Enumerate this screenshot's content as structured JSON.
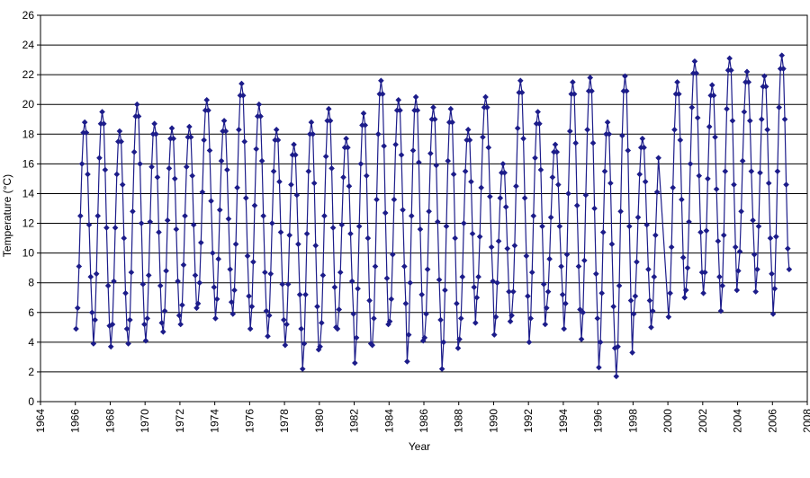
{
  "chart_data": {
    "type": "line",
    "x_label": "Year",
    "y_label": "Temperature (°C)",
    "xlim": [
      1964,
      2008
    ],
    "xticks": [
      1964,
      1966,
      1968,
      1970,
      1972,
      1974,
      1976,
      1978,
      1980,
      1982,
      1984,
      1986,
      1988,
      1990,
      1992,
      1994,
      1996,
      1998,
      2000,
      2002,
      2004,
      2006,
      2008
    ],
    "ylim": [
      0,
      26
    ],
    "yticks": [
      0,
      2,
      4,
      6,
      8,
      10,
      12,
      14,
      16,
      18,
      20,
      22,
      24,
      26
    ],
    "grid": true,
    "color": "#1c1c8a",
    "x": [
      1966.04,
      1966.13,
      1966.21,
      1966.29,
      1966.38,
      1966.46,
      1966.54,
      1966.63,
      1966.71,
      1966.79,
      1966.88,
      1966.96,
      1967.04,
      1967.13,
      1967.21,
      1967.29,
      1967.38,
      1967.46,
      1967.54,
      1967.63,
      1967.71,
      1967.79,
      1967.88,
      1967.96,
      1968.04,
      1968.13,
      1968.21,
      1968.29,
      1968.38,
      1968.46,
      1968.54,
      1968.63,
      1968.71,
      1968.79,
      1968.88,
      1968.96,
      1969.04,
      1969.13,
      1969.21,
      1969.29,
      1969.38,
      1969.46,
      1969.54,
      1969.63,
      1969.71,
      1969.79,
      1969.88,
      1969.96,
      1970.04,
      1970.13,
      1970.21,
      1970.29,
      1970.38,
      1970.46,
      1970.54,
      1970.63,
      1970.71,
      1970.79,
      1970.88,
      1970.96,
      1971.04,
      1971.13,
      1971.21,
      1971.29,
      1971.38,
      1971.46,
      1971.54,
      1971.63,
      1971.71,
      1971.79,
      1971.88,
      1971.96,
      1972.04,
      1972.13,
      1972.21,
      1972.29,
      1972.38,
      1972.46,
      1972.54,
      1972.63,
      1972.71,
      1972.79,
      1972.88,
      1972.96,
      1973.04,
      1973.13,
      1973.21,
      1973.29,
      1973.38,
      1973.46,
      1973.54,
      1973.63,
      1973.71,
      1973.79,
      1973.88,
      1973.96,
      1974.04,
      1974.13,
      1974.21,
      1974.29,
      1974.38,
      1974.46,
      1974.54,
      1974.63,
      1974.71,
      1974.79,
      1974.88,
      1974.96,
      1975.04,
      1975.13,
      1975.21,
      1975.29,
      1975.38,
      1975.46,
      1975.54,
      1975.63,
      1975.71,
      1975.79,
      1975.88,
      1975.96,
      1976.04,
      1976.13,
      1976.21,
      1976.29,
      1976.38,
      1976.46,
      1976.54,
      1976.63,
      1976.71,
      1976.79,
      1976.88,
      1976.96,
      1977.04,
      1977.13,
      1977.21,
      1977.29,
      1977.38,
      1977.46,
      1977.54,
      1977.63,
      1977.71,
      1977.79,
      1977.88,
      1977.96,
      1978.04,
      1978.13,
      1978.21,
      1978.29,
      1978.38,
      1978.46,
      1978.54,
      1978.63,
      1978.71,
      1978.79,
      1978.88,
      1978.96,
      1979.04,
      1979.13,
      1979.21,
      1979.29,
      1979.38,
      1979.46,
      1979.54,
      1979.63,
      1979.71,
      1979.79,
      1979.88,
      1979.96,
      1980.04,
      1980.13,
      1980.21,
      1980.29,
      1980.38,
      1980.46,
      1980.54,
      1980.63,
      1980.71,
      1980.79,
      1980.88,
      1980.96,
      1981.04,
      1981.13,
      1981.21,
      1981.29,
      1981.38,
      1981.46,
      1981.54,
      1981.63,
      1981.71,
      1981.79,
      1981.88,
      1981.96,
      1982.04,
      1982.13,
      1982.21,
      1982.29,
      1982.38,
      1982.46,
      1982.54,
      1982.63,
      1982.71,
      1982.79,
      1982.88,
      1982.96,
      1983.04,
      1983.13,
      1983.21,
      1983.29,
      1983.38,
      1983.46,
      1983.54,
      1983.63,
      1983.71,
      1983.79,
      1983.88,
      1983.96,
      1984.04,
      1984.13,
      1984.21,
      1984.29,
      1984.38,
      1984.46,
      1984.54,
      1984.63,
      1984.71,
      1984.79,
      1984.88,
      1984.96,
      1985.04,
      1985.13,
      1985.21,
      1985.29,
      1985.38,
      1985.46,
      1985.54,
      1985.63,
      1985.71,
      1985.79,
      1985.88,
      1985.96,
      1986.04,
      1986.13,
      1986.21,
      1986.29,
      1986.38,
      1986.46,
      1986.54,
      1986.63,
      1986.71,
      1986.79,
      1986.88,
      1986.96,
      1987.04,
      1987.13,
      1987.21,
      1987.29,
      1987.38,
      1987.46,
      1987.54,
      1987.63,
      1987.71,
      1987.79,
      1987.88,
      1987.96,
      1988.04,
      1988.13,
      1988.21,
      1988.29,
      1988.38,
      1988.46,
      1988.54,
      1988.63,
      1988.71,
      1988.79,
      1988.88,
      1988.96,
      1989.04,
      1989.13,
      1989.21,
      1989.29,
      1989.38,
      1989.46,
      1989.54,
      1989.63,
      1989.71,
      1989.79,
      1989.88,
      1989.96,
      1990.04,
      1990.13,
      1990.21,
      1990.29,
      1990.38,
      1990.46,
      1990.54,
      1990.63,
      1990.71,
      1990.79,
      1990.88,
      1990.96,
      1991.04,
      1991.13,
      1991.21,
      1991.29,
      1991.38,
      1991.46,
      1991.54,
      1991.63,
      1991.71,
      1991.79,
      1991.88,
      1991.96,
      1992.04,
      1992.13,
      1992.21,
      1992.29,
      1992.38,
      1992.46,
      1992.54,
      1992.63,
      1992.71,
      1992.79,
      1992.88,
      1992.96,
      1993.04,
      1993.13,
      1993.21,
      1993.29,
      1993.38,
      1993.46,
      1993.54,
      1993.63,
      1993.71,
      1993.79,
      1993.88,
      1993.96,
      1994.04,
      1994.13,
      1994.21,
      1994.29,
      1994.38,
      1994.46,
      1994.54,
      1994.63,
      1994.71,
      1994.79,
      1994.88,
      1994.96,
      1995.04,
      1995.13,
      1995.21,
      1995.29,
      1995.38,
      1995.46,
      1995.54,
      1995.63,
      1995.71,
      1995.79,
      1995.88,
      1995.96,
      1996.04,
      1996.13,
      1996.21,
      1996.29,
      1996.38,
      1996.46,
      1996.54,
      1996.63,
      1996.71,
      1996.79,
      1996.88,
      1996.96,
      1997.04,
      1997.13,
      1997.21,
      1997.29,
      1997.38,
      1997.46,
      1997.54,
      1997.63,
      1997.71,
      1997.79,
      1997.88,
      1997.96,
      1998.04,
      1998.13,
      1998.21,
      1998.29,
      1998.38,
      1998.46,
      1998.54,
      1998.63,
      1998.71,
      1998.79,
      1998.88,
      1998.96,
      1999.04,
      1999.13,
      1999.21,
      1999.29,
      1999.38,
      1999.46,
      2000.04,
      2000.13,
      2000.21,
      2000.29,
      2000.38,
      2000.46,
      2000.54,
      2000.63,
      2000.71,
      2000.79,
      2000.88,
      2000.96,
      2001.04,
      2001.13,
      2001.21,
      2001.29,
      2001.38,
      2001.46,
      2001.54,
      2001.63,
      2001.71,
      2001.79,
      2001.88,
      2001.96,
      2002.04,
      2002.13,
      2002.21,
      2002.29,
      2002.38,
      2002.46,
      2002.54,
      2002.63,
      2002.71,
      2002.79,
      2002.88,
      2002.96,
      2003.04,
      2003.13,
      2003.21,
      2003.29,
      2003.38,
      2003.46,
      2003.54,
      2003.63,
      2003.71,
      2003.79,
      2003.88,
      2003.96,
      2004.04,
      2004.13,
      2004.21,
      2004.29,
      2004.38,
      2004.46,
      2004.54,
      2004.63,
      2004.71,
      2004.79,
      2004.88,
      2004.96,
      2005.04,
      2005.13,
      2005.21,
      2005.29,
      2005.38,
      2005.46,
      2005.54,
      2005.63,
      2005.71,
      2005.79,
      2005.88,
      2005.96,
      2006.04,
      2006.13,
      2006.21,
      2006.29,
      2006.38,
      2006.46,
      2006.54,
      2006.63,
      2006.71,
      2006.79,
      2006.88,
      2006.96
    ],
    "values": [
      4.9,
      6.3,
      9.1,
      12.5,
      16.0,
      18.1,
      18.8,
      18.1,
      15.3,
      11.9,
      8.4,
      6.0,
      3.9,
      5.5,
      8.6,
      12.5,
      16.4,
      18.7,
      19.5,
      18.7,
      15.6,
      11.7,
      7.8,
      5.1,
      3.7,
      5.2,
      8.1,
      11.7,
      15.3,
      17.5,
      18.2,
      17.5,
      14.6,
      11.0,
      7.3,
      4.9,
      3.9,
      5.5,
      8.7,
      12.8,
      16.8,
      19.2,
      20.0,
      19.2,
      16.0,
      12.0,
      7.9,
      5.2,
      4.1,
      5.6,
      8.5,
      12.1,
      15.8,
      18.0,
      18.7,
      18.0,
      15.1,
      11.4,
      7.8,
      5.3,
      4.7,
      6.1,
      8.8,
      12.2,
      15.7,
      17.7,
      18.4,
      17.7,
      15.0,
      11.6,
      8.1,
      5.8,
      5.2,
      6.5,
      9.2,
      12.5,
      15.8,
      17.8,
      18.5,
      17.8,
      15.2,
      11.9,
      8.5,
      6.3,
      6.6,
      8.0,
      10.7,
      14.1,
      17.6,
      19.6,
      20.3,
      19.6,
      16.9,
      13.5,
      10.0,
      7.7,
      5.6,
      6.9,
      9.6,
      12.9,
      16.2,
      18.2,
      18.9,
      18.2,
      15.6,
      12.3,
      8.9,
      6.7,
      5.9,
      7.5,
      10.6,
      14.4,
      18.3,
      20.6,
      21.4,
      20.6,
      17.5,
      13.7,
      9.8,
      7.1,
      4.9,
      6.4,
      9.4,
      13.2,
      17.0,
      19.2,
      20.0,
      19.2,
      16.2,
      12.5,
      8.7,
      6.1,
      4.4,
      5.8,
      8.6,
      12.0,
      15.5,
      17.6,
      18.3,
      17.6,
      14.8,
      11.4,
      7.9,
      5.5,
      3.8,
      5.2,
      7.9,
      11.2,
      14.6,
      16.6,
      17.3,
      16.6,
      13.9,
      10.6,
      7.2,
      4.9,
      2.2,
      3.9,
      7.2,
      11.3,
      15.5,
      18.0,
      18.8,
      18.0,
      14.7,
      10.5,
      6.4,
      3.5,
      3.7,
      5.3,
      8.5,
      12.5,
      16.5,
      18.9,
      19.7,
      18.9,
      15.7,
      11.7,
      7.7,
      5.0,
      4.9,
      6.2,
      8.7,
      11.9,
      15.1,
      17.1,
      17.7,
      17.1,
      14.5,
      11.3,
      8.1,
      5.9,
      2.6,
      4.3,
      7.6,
      11.8,
      16.0,
      18.6,
      19.4,
      18.6,
      15.2,
      11.0,
      6.8,
      3.9,
      3.8,
      5.6,
      9.1,
      13.6,
      18.0,
      20.7,
      21.6,
      20.7,
      17.2,
      12.7,
      8.3,
      5.2,
      5.4,
      6.9,
      9.9,
      13.6,
      17.3,
      19.6,
      20.3,
      19.6,
      16.6,
      12.9,
      9.1,
      6.6,
      2.7,
      4.5,
      8.0,
      12.5,
      16.9,
      19.6,
      20.5,
      19.6,
      16.1,
      11.6,
      7.2,
      4.1,
      4.3,
      5.9,
      8.9,
      12.8,
      16.7,
      19.0,
      19.8,
      19.0,
      15.9,
      12.1,
      8.2,
      5.5,
      2.2,
      4.0,
      7.5,
      11.8,
      16.2,
      18.8,
      19.7,
      18.8,
      15.3,
      11.0,
      6.6,
      3.6,
      4.2,
      5.6,
      8.4,
      12.0,
      15.5,
      17.6,
      18.3,
      17.6,
      14.8,
      11.3,
      7.7,
      5.3,
      7.0,
      8.4,
      11.1,
      14.4,
      17.8,
      19.8,
      20.5,
      19.8,
      17.1,
      13.8,
      10.4,
      8.1,
      4.5,
      5.7,
      8.0,
      10.8,
      13.7,
      15.4,
      16.0,
      15.4,
      13.1,
      10.3,
      7.4,
      5.4,
      5.8,
      7.4,
      10.5,
      14.5,
      18.4,
      20.8,
      21.6,
      20.8,
      17.7,
      13.7,
      9.8,
      7.1,
      4.0,
      5.6,
      8.7,
      12.5,
      16.4,
      18.7,
      19.5,
      18.7,
      15.6,
      11.8,
      7.9,
      5.2,
      6.3,
      7.4,
      9.6,
      12.4,
      15.1,
      16.8,
      17.3,
      16.8,
      14.6,
      11.8,
      9.1,
      7.2,
      4.9,
      6.6,
      9.9,
      14.0,
      18.2,
      20.7,
      21.5,
      20.7,
      17.4,
      13.2,
      9.1,
      6.2,
      4.2,
      6.0,
      9.5,
      13.9,
      18.3,
      20.9,
      21.8,
      20.9,
      17.4,
      13.0,
      8.6,
      5.6,
      2.3,
      4.0,
      7.3,
      11.4,
      15.5,
      18.0,
      18.8,
      18.0,
      14.7,
      10.6,
      6.4,
      3.6,
      1.7,
      3.7,
      7.8,
      12.8,
      17.9,
      20.9,
      21.9,
      20.9,
      16.9,
      11.8,
      6.8,
      3.3,
      5.9,
      7.1,
      9.4,
      12.4,
      15.3,
      17.1,
      17.7,
      17.1,
      14.8,
      11.9,
      8.9,
      6.8,
      5.0,
      6.1,
      8.4,
      11.2,
      14.1,
      16.4,
      5.7,
      7.3,
      10.4,
      14.4,
      18.3,
      20.7,
      21.5,
      20.7,
      17.6,
      13.6,
      9.7,
      7.0,
      7.5,
      9.0,
      12.1,
      16.0,
      19.8,
      22.1,
      22.9,
      22.1,
      19.1,
      15.2,
      11.4,
      8.7,
      7.3,
      8.7,
      11.5,
      15.0,
      18.5,
      20.6,
      21.3,
      20.6,
      17.8,
      14.3,
      10.8,
      8.4,
      6.1,
      7.8,
      11.2,
      15.5,
      19.7,
      22.3,
      23.1,
      22.3,
      18.9,
      14.6,
      10.4,
      7.5,
      8.8,
      10.1,
      12.8,
      16.2,
      19.5,
      21.5,
      22.2,
      21.5,
      18.9,
      15.5,
      12.2,
      9.9,
      7.4,
      8.9,
      11.8,
      15.4,
      19.0,
      21.2,
      21.9,
      21.2,
      18.3,
      14.7,
      11.0,
      8.6,
      5.9,
      7.6,
      11.1,
      15.5,
      19.8,
      22.4,
      23.3,
      22.4,
      19.0,
      14.6,
      10.3,
      8.9
    ]
  }
}
